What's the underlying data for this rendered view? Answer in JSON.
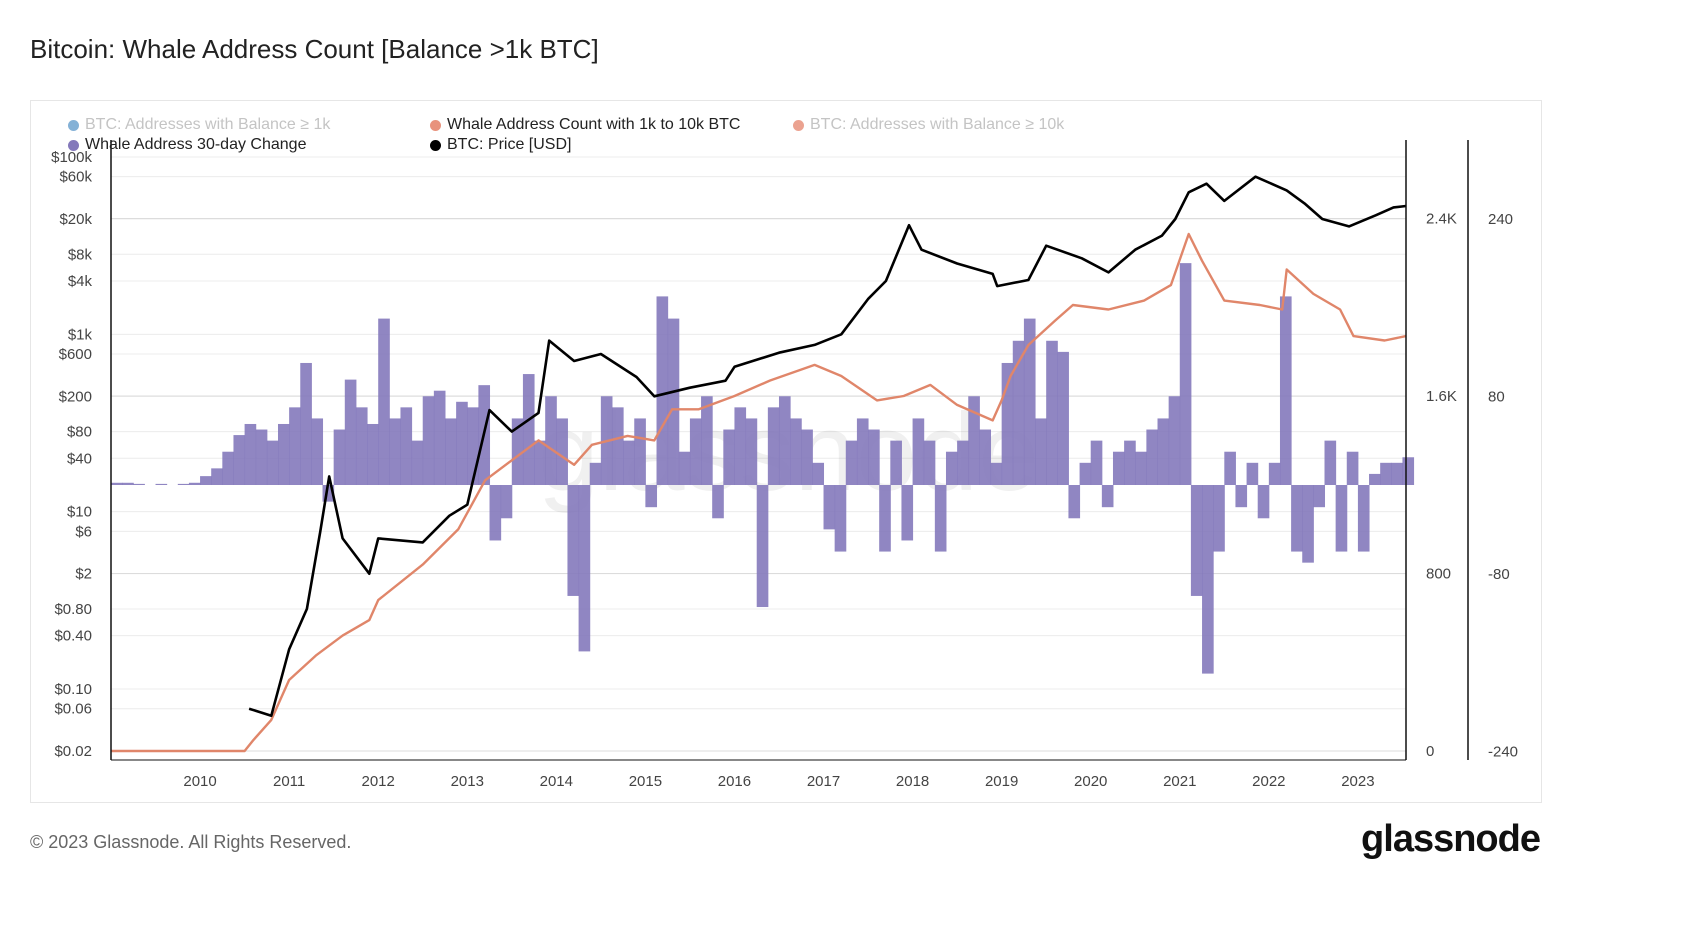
{
  "title": "Bitcoin: Whale Address Count [Balance >1k BTC]",
  "footer": "© 2023 Glassnode. All Rights Reserved.",
  "logo": "glassnode",
  "watermark": "glassnode",
  "legend": [
    {
      "label": "BTC: Addresses with Balance ≥ 1k",
      "color": "#6fa3cf",
      "active": false
    },
    {
      "label": "Whale Address Count with 1k to 10k BTC",
      "color": "#e8927c",
      "active": true
    },
    {
      "label": "BTC: Addresses with Balance ≥ 10k",
      "color": "#e8927c",
      "active": false
    },
    {
      "label": "Whale Address 30-day Change",
      "color": "#8479bb",
      "active": true
    },
    {
      "label": "BTC: Price [USD]",
      "color": "#000000",
      "active": true
    }
  ],
  "chart_data": {
    "type": "line",
    "title": "Bitcoin: Whale Address Count [Balance >1k BTC]",
    "x_ticks": [
      "2010",
      "2011",
      "2012",
      "2013",
      "2014",
      "2015",
      "2016",
      "2017",
      "2018",
      "2019",
      "2020",
      "2021",
      "2022",
      "2023"
    ],
    "xlim": [
      2009.0,
      2023.54
    ],
    "price_axis": {
      "scale": "log",
      "ylim": [
        0.02,
        100000
      ],
      "ticks": [
        {
          "v": 100000,
          "l": "$100k"
        },
        {
          "v": 60000,
          "l": "$60k"
        },
        {
          "v": 20000,
          "l": "$20k"
        },
        {
          "v": 8000,
          "l": "$8k"
        },
        {
          "v": 4000,
          "l": "$4k"
        },
        {
          "v": 1000,
          "l": "$1k"
        },
        {
          "v": 600,
          "l": "$600"
        },
        {
          "v": 200,
          "l": "$200"
        },
        {
          "v": 80,
          "l": "$80"
        },
        {
          "v": 40,
          "l": "$40"
        },
        {
          "v": 10,
          "l": "$10"
        },
        {
          "v": 6,
          "l": "$6"
        },
        {
          "v": 2,
          "l": "$2"
        },
        {
          "v": 0.8,
          "l": "$0.80"
        },
        {
          "v": 0.4,
          "l": "$0.40"
        },
        {
          "v": 0.1,
          "l": "$0.10"
        },
        {
          "v": 0.06,
          "l": "$0.06"
        },
        {
          "v": 0.02,
          "l": "$0.02"
        }
      ]
    },
    "count_axis": {
      "ylim": [
        0,
        2800
      ],
      "ticks": [
        {
          "v": 0,
          "l": "0"
        },
        {
          "v": 800,
          "l": "800"
        },
        {
          "v": 1600,
          "l": "1.6K"
        },
        {
          "v": 2400,
          "l": "2.4K"
        }
      ]
    },
    "change_axis": {
      "ylim": [
        -240,
        320
      ],
      "ticks": [
        {
          "v": -240,
          "l": "-240"
        },
        {
          "v": -80,
          "l": "-80"
        },
        {
          "v": 80,
          "l": "80"
        },
        {
          "v": 240,
          "l": "240"
        }
      ]
    },
    "grid": true,
    "legend_position": "top-left",
    "series": [
      {
        "name": "BTC: Price [USD]",
        "axis": "price",
        "type": "line",
        "color": "#000000",
        "points": [
          [
            2010.55,
            0.06
          ],
          [
            2010.8,
            0.05
          ],
          [
            2011.0,
            0.28
          ],
          [
            2011.2,
            0.8
          ],
          [
            2011.35,
            6
          ],
          [
            2011.45,
            25
          ],
          [
            2011.6,
            5
          ],
          [
            2011.9,
            2
          ],
          [
            2012.0,
            5
          ],
          [
            2012.5,
            4.5
          ],
          [
            2012.8,
            9
          ],
          [
            2013.0,
            12
          ],
          [
            2013.25,
            140
          ],
          [
            2013.5,
            80
          ],
          [
            2013.8,
            130
          ],
          [
            2013.92,
            850
          ],
          [
            2014.2,
            500
          ],
          [
            2014.5,
            600
          ],
          [
            2014.9,
            330
          ],
          [
            2015.1,
            200
          ],
          [
            2015.5,
            250
          ],
          [
            2015.9,
            300
          ],
          [
            2016.0,
            430
          ],
          [
            2016.5,
            620
          ],
          [
            2016.9,
            760
          ],
          [
            2017.2,
            1000
          ],
          [
            2017.5,
            2500
          ],
          [
            2017.7,
            4000
          ],
          [
            2017.96,
            17000
          ],
          [
            2018.1,
            9000
          ],
          [
            2018.5,
            6300
          ],
          [
            2018.9,
            4800
          ],
          [
            2018.95,
            3500
          ],
          [
            2019.3,
            4100
          ],
          [
            2019.5,
            10000
          ],
          [
            2019.9,
            7200
          ],
          [
            2020.2,
            5000
          ],
          [
            2020.5,
            9000
          ],
          [
            2020.8,
            13000
          ],
          [
            2020.95,
            20000
          ],
          [
            2021.1,
            40000
          ],
          [
            2021.3,
            50000
          ],
          [
            2021.5,
            32000
          ],
          [
            2021.85,
            60000
          ],
          [
            2022.2,
            42000
          ],
          [
            2022.4,
            30000
          ],
          [
            2022.6,
            20000
          ],
          [
            2022.9,
            16500
          ],
          [
            2023.2,
            22000
          ],
          [
            2023.4,
            27000
          ],
          [
            2023.54,
            28000
          ]
        ]
      },
      {
        "name": "Whale Address Count with 1k to 10k BTC",
        "axis": "count",
        "type": "line",
        "color": "#e0866a",
        "points": [
          [
            2009.0,
            0
          ],
          [
            2010.5,
            0
          ],
          [
            2010.6,
            50
          ],
          [
            2010.8,
            140
          ],
          [
            2011.0,
            320
          ],
          [
            2011.3,
            430
          ],
          [
            2011.6,
            520
          ],
          [
            2011.9,
            590
          ],
          [
            2012.0,
            680
          ],
          [
            2012.5,
            840
          ],
          [
            2012.9,
            1000
          ],
          [
            2013.2,
            1220
          ],
          [
            2013.5,
            1310
          ],
          [
            2013.8,
            1400
          ],
          [
            2014.2,
            1290
          ],
          [
            2014.4,
            1380
          ],
          [
            2014.8,
            1420
          ],
          [
            2015.1,
            1400
          ],
          [
            2015.3,
            1540
          ],
          [
            2015.6,
            1540
          ],
          [
            2016.0,
            1600
          ],
          [
            2016.4,
            1670
          ],
          [
            2016.9,
            1740
          ],
          [
            2017.2,
            1690
          ],
          [
            2017.6,
            1580
          ],
          [
            2017.9,
            1600
          ],
          [
            2018.2,
            1650
          ],
          [
            2018.5,
            1560
          ],
          [
            2018.9,
            1490
          ],
          [
            2019.0,
            1580
          ],
          [
            2019.1,
            1690
          ],
          [
            2019.3,
            1830
          ],
          [
            2019.6,
            1940
          ],
          [
            2019.8,
            2010
          ],
          [
            2020.2,
            1990
          ],
          [
            2020.6,
            2030
          ],
          [
            2020.9,
            2100
          ],
          [
            2021.1,
            2330
          ],
          [
            2021.25,
            2210
          ],
          [
            2021.5,
            2030
          ],
          [
            2021.9,
            2010
          ],
          [
            2022.15,
            1990
          ],
          [
            2022.2,
            2170
          ],
          [
            2022.5,
            2060
          ],
          [
            2022.8,
            1990
          ],
          [
            2022.95,
            1870
          ],
          [
            2023.3,
            1850
          ],
          [
            2023.54,
            1870
          ]
        ]
      },
      {
        "name": "Whale Address 30-day Change",
        "axis": "change",
        "type": "bar",
        "color": "#8479bb",
        "x_start": 2009.0,
        "x_step": 0.125,
        "values": [
          2,
          2,
          1,
          0,
          1,
          0,
          1,
          2,
          8,
          15,
          30,
          45,
          55,
          50,
          40,
          55,
          70,
          110,
          60,
          -15,
          50,
          95,
          70,
          55,
          150,
          60,
          70,
          40,
          80,
          85,
          60,
          75,
          70,
          90,
          -50,
          -30,
          60,
          100,
          40,
          80,
          60,
          -100,
          -150,
          20,
          80,
          70,
          40,
          60,
          -20,
          170,
          150,
          30,
          60,
          80,
          -30,
          50,
          70,
          60,
          -110,
          70,
          80,
          60,
          50,
          20,
          -40,
          -60,
          40,
          60,
          50,
          -60,
          40,
          -50,
          60,
          40,
          -60,
          30,
          40,
          80,
          50,
          20,
          110,
          130,
          150,
          60,
          130,
          120,
          -30,
          20,
          40,
          -20,
          30,
          40,
          30,
          50,
          60,
          80,
          200,
          -100,
          -170,
          -60,
          30,
          -20,
          20,
          -30,
          20,
          170,
          -60,
          -70,
          -20,
          40,
          -60,
          30,
          -60,
          10,
          20,
          20,
          25
        ]
      }
    ]
  }
}
